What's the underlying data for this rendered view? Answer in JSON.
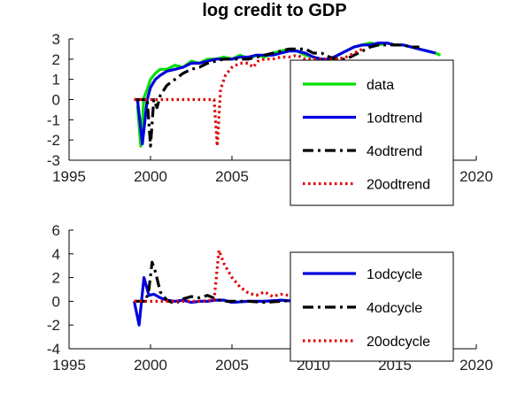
{
  "figure_title": "log credit  to GDP",
  "chart_data": [
    {
      "type": "line",
      "title": "log credit  to GDP",
      "xlabel": "",
      "ylabel": "",
      "xlim": [
        1995,
        2020
      ],
      "ylim": [
        -3,
        3
      ],
      "xticks": [
        "1995",
        "2000",
        "2005",
        "2010",
        "2015",
        "2020"
      ],
      "yticks": [
        "-3",
        "-2",
        "-1",
        "0",
        "1",
        "2",
        "3"
      ],
      "legend_position": "right",
      "series": [
        {
          "name": "data",
          "color": "#00e000",
          "style": "solid",
          "x": [
            1999.2,
            1999.4,
            1999.6,
            1999.8,
            2000.0,
            2000.3,
            2000.6,
            2001.0,
            2001.5,
            2002.0,
            2002.5,
            2003.0,
            2003.5,
            2004.0,
            2004.5,
            2005.0,
            2005.5,
            2006.0,
            2006.5,
            2007.0,
            2007.5,
            2008.0,
            2008.5,
            2009.0,
            2009.5,
            2010.0,
            2010.5,
            2011.0,
            2011.5,
            2012.0,
            2012.5,
            2013.0,
            2013.5,
            2014.0,
            2014.5,
            2015.0,
            2015.5,
            2016.0,
            2016.5,
            2017.0,
            2017.5,
            2017.8
          ],
          "y": [
            -0.3,
            -2.3,
            0.1,
            0.5,
            1.0,
            1.3,
            1.5,
            1.5,
            1.7,
            1.6,
            1.9,
            1.8,
            2.0,
            2.0,
            2.1,
            2.0,
            2.2,
            2.0,
            2.2,
            2.1,
            2.3,
            2.4,
            2.5,
            2.4,
            2.2,
            2.1,
            2.0,
            1.9,
            2.2,
            2.4,
            2.6,
            2.7,
            2.8,
            2.7,
            2.8,
            2.7,
            2.7,
            2.6,
            2.5,
            2.4,
            2.3,
            2.2
          ]
        },
        {
          "name": "1odtrend",
          "color": "#0000e0",
          "style": "solid",
          "x": [
            1999.2,
            1999.5,
            1999.8,
            2000.0,
            2000.3,
            2000.6,
            2001.0,
            2001.5,
            2002.0,
            2002.5,
            2003.0,
            2003.5,
            2004.0,
            2004.5,
            2005.0,
            2005.5,
            2006.0,
            2006.5,
            2007.0,
            2007.5,
            2008.0,
            2008.5,
            2009.0,
            2009.5,
            2010.0,
            2010.5,
            2011.0,
            2011.5,
            2012.0,
            2012.5,
            2013.0,
            2013.5,
            2014.0,
            2014.5,
            2015.0,
            2015.5,
            2016.0,
            2016.5,
            2017.0,
            2017.5
          ],
          "y": [
            0.0,
            -2.2,
            0.0,
            0.6,
            1.0,
            1.2,
            1.4,
            1.5,
            1.6,
            1.8,
            1.8,
            1.9,
            2.0,
            2.0,
            2.0,
            2.1,
            2.1,
            2.2,
            2.2,
            2.2,
            2.3,
            2.4,
            2.4,
            2.3,
            2.1,
            2.0,
            2.0,
            2.2,
            2.4,
            2.6,
            2.7,
            2.7,
            2.8,
            2.8,
            2.7,
            2.7,
            2.6,
            2.5,
            2.4,
            2.3
          ]
        },
        {
          "name": "4odtrend",
          "color": "#000000",
          "style": "dashdot",
          "x": [
            1999.0,
            1999.8,
            2000.0,
            2000.2,
            2000.4,
            2000.6,
            2001.0,
            2001.5,
            2002.0,
            2002.5,
            2003.0,
            2003.5,
            2004.0,
            2004.5,
            2005.0,
            2005.5,
            2006.0,
            2006.5,
            2007.0,
            2007.5,
            2008.0,
            2008.5,
            2009.0,
            2009.5,
            2010.0,
            2010.5,
            2011.0,
            2011.5,
            2012.0,
            2012.5,
            2013.0,
            2013.5,
            2014.0,
            2014.5,
            2015.0,
            2015.5,
            2016.0,
            2016.5
          ],
          "y": [
            0.0,
            0.0,
            -2.3,
            0.0,
            -0.4,
            0.2,
            0.7,
            1.0,
            1.3,
            1.5,
            1.6,
            1.8,
            1.9,
            2.0,
            2.0,
            2.0,
            2.0,
            2.1,
            2.2,
            2.3,
            2.4,
            2.5,
            2.5,
            2.5,
            2.3,
            2.3,
            2.1,
            2.0,
            2.0,
            2.2,
            2.4,
            2.6,
            2.7,
            2.7,
            2.7,
            2.7,
            2.6,
            2.6
          ]
        },
        {
          "name": "20odtrend",
          "color": "#e00000",
          "style": "dotted",
          "x": [
            1999.0,
            2000.5,
            2003.9,
            2004.1,
            2004.3,
            2004.6,
            2005.0,
            2005.5,
            2006.0,
            2006.3,
            2006.6,
            2007.0,
            2007.5,
            2008.0,
            2008.5,
            2009.0,
            2009.5,
            2010.0,
            2010.5,
            2011.0,
            2011.5,
            2012.0,
            2012.5,
            2013.0
          ],
          "y": [
            0.0,
            0.0,
            0.0,
            -2.3,
            0.5,
            1.2,
            1.6,
            1.8,
            1.8,
            1.6,
            1.9,
            2.0,
            2.0,
            2.1,
            2.1,
            2.2,
            2.0,
            2.0,
            2.0,
            2.0,
            2.0,
            2.1,
            2.3,
            2.5
          ]
        }
      ]
    },
    {
      "type": "line",
      "title": "",
      "xlabel": "",
      "ylabel": "",
      "xlim": [
        1995,
        2020
      ],
      "ylim": [
        -4,
        6
      ],
      "xticks": [
        "1995",
        "2000",
        "2005",
        "2010",
        "2015",
        "2020"
      ],
      "yticks": [
        "-4",
        "-2",
        "0",
        "2",
        "4",
        "6"
      ],
      "legend_position": "right",
      "series": [
        {
          "name": "1odcycle",
          "color": "#0000e0",
          "style": "solid",
          "x": [
            1999.0,
            1999.3,
            1999.6,
            1999.9,
            2000.2,
            2000.6,
            2001.0,
            2001.5,
            2002.0,
            2002.5,
            2003.0,
            2003.5,
            2004.0,
            2004.5,
            2005.0,
            2006.0,
            2007.0,
            2008.0,
            2009.0,
            2010.0,
            2011.0,
            2012.0,
            2013.0
          ],
          "y": [
            0.0,
            -2.0,
            2.0,
            0.5,
            0.6,
            0.3,
            0.1,
            0.0,
            0.1,
            -0.1,
            0.0,
            0.0,
            0.1,
            0.1,
            -0.1,
            0.0,
            0.0,
            0.1,
            0.0,
            0.0,
            0.0,
            0.0,
            0.0
          ]
        },
        {
          "name": "4odcycle",
          "color": "#000000",
          "style": "dashdot",
          "x": [
            1999.0,
            1999.7,
            1999.9,
            2000.1,
            2000.3,
            2000.6,
            2001.0,
            2001.5,
            2002.0,
            2002.5,
            2003.0,
            2003.5,
            2004.0,
            2004.5,
            2005.0,
            2006.0,
            2007.0,
            2008.0,
            2009.0,
            2010.0,
            2011.0
          ],
          "y": [
            0.0,
            0.0,
            1.0,
            3.3,
            2.5,
            0.8,
            0.1,
            -0.2,
            0.2,
            0.4,
            0.3,
            0.5,
            0.2,
            0.0,
            0.0,
            0.0,
            -0.1,
            0.0,
            0.1,
            0.0,
            0.0
          ]
        },
        {
          "name": "20odcycle",
          "color": "#e00000",
          "style": "dotted",
          "x": [
            1999.0,
            2003.0,
            2003.9,
            2004.2,
            2004.5,
            2005.0,
            2005.5,
            2006.0,
            2006.5,
            2007.0,
            2007.5,
            2008.0,
            2008.5,
            2009.0,
            2009.5,
            2010.0,
            2010.5,
            2011.0
          ],
          "y": [
            0.0,
            0.0,
            0.1,
            4.3,
            3.2,
            2.0,
            1.2,
            0.7,
            0.5,
            0.8,
            0.4,
            0.6,
            0.5,
            0.3,
            0.3,
            0.2,
            0.1,
            0.0
          ]
        }
      ]
    }
  ]
}
